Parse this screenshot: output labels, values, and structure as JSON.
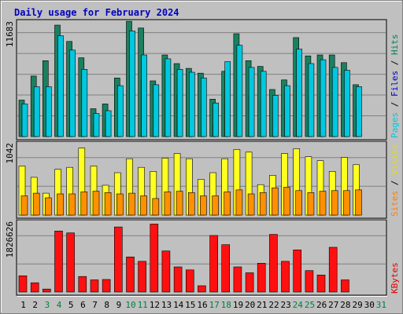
{
  "chart_data": {
    "type": "bar",
    "title": "Daily usage for February 2024",
    "days": [
      "1",
      "2",
      "3",
      "4",
      "5",
      "6",
      "7",
      "8",
      "9",
      "10",
      "11",
      "12",
      "13",
      "14",
      "15",
      "16",
      "17",
      "18",
      "19",
      "20",
      "21",
      "22",
      "23",
      "24",
      "25",
      "26",
      "27",
      "28",
      "29",
      "30",
      "31"
    ],
    "weekend_days": [
      "3",
      "4",
      "10",
      "11",
      "17",
      "18",
      "24",
      "25",
      "31"
    ],
    "panels": [
      {
        "name": "hits-files-pages",
        "max_label": "11683",
        "ymax": 11683,
        "right_label": [
          {
            "text": "Pages",
            "color": "#00c8e0"
          },
          {
            "text": " / ",
            "color": "#000000"
          },
          {
            "text": "Files",
            "color": "#0000c0"
          },
          {
            "text": " / ",
            "color": "#000000"
          },
          {
            "text": "Hits",
            "color": "#008060"
          }
        ],
        "series": [
          {
            "name": "Hits",
            "color": "#1a8060",
            "values": [
              3800,
              6300,
              7900,
              11600,
              9900,
              8200,
              2900,
              3400,
              6100,
              12000,
              11300,
              5800,
              8500,
              7600,
              7100,
              6600,
              3900,
              6800,
              10700,
              7900,
              7300,
              4900,
              5900,
              10300,
              8400,
              8500,
              8500,
              7700,
              5400,
              null,
              null
            ]
          },
          {
            "name": "Files",
            "color": "#0000a0",
            "values": [
              1800,
              3400,
              3700,
              5900,
              6500,
              4700,
              1400,
              2000,
              3400,
              6400,
              5900,
              3400,
              4800,
              4400,
              3800,
              3700,
              1300,
              3500,
              5700,
              4300,
              3700,
              2600,
              3000,
              5400,
              4300,
              4600,
              4600,
              3200,
              2800,
              null,
              null
            ]
          },
          {
            "name": "Pages",
            "color": "#00c8e0",
            "values": [
              3400,
              5200,
              5200,
              10500,
              9000,
              7000,
              2400,
              2700,
              5300,
              11000,
              8500,
              5400,
              8100,
              7000,
              6700,
              6100,
              3500,
              7800,
              9500,
              7200,
              6800,
              4300,
              5300,
              9100,
              7600,
              8000,
              7200,
              6900,
              5200,
              null,
              null
            ]
          }
        ]
      },
      {
        "name": "visits-sites",
        "max_label": "1042",
        "ymax": 1042,
        "right_label": [
          {
            "text": "Sites",
            "color": "#ff8000"
          },
          {
            "text": " / ",
            "color": "#000000"
          },
          {
            "text": "Visits",
            "color": "#e0e000"
          }
        ],
        "series": [
          {
            "name": "Visits",
            "color": "#ffff20",
            "values": [
              740,
              570,
              330,
              690,
              720,
              1010,
              740,
              450,
              640,
              850,
              720,
              660,
              860,
              930,
              850,
              540,
              640,
              850,
              990,
              950,
              460,
              600,
              930,
              1000,
              880,
              820,
              660,
              870,
              760,
              null,
              null
            ]
          },
          {
            "name": "Sites",
            "color": "#ff9000",
            "values": [
              290,
              330,
              260,
              320,
              320,
              350,
              360,
              340,
              320,
              330,
              290,
              250,
              350,
              360,
              340,
              290,
              290,
              350,
              380,
              320,
              340,
              410,
              420,
              370,
              340,
              360,
              370,
              370,
              380,
              null,
              null
            ]
          }
        ]
      },
      {
        "name": "kbytes",
        "max_label": "1826626",
        "ymax": 1826626,
        "right_label": [
          {
            "text": "KBytes",
            "color": "#e00000"
          }
        ],
        "series": [
          {
            "name": "KBytes",
            "color": "#ff1010",
            "values": [
              440000,
              250000,
              80000,
              1650000,
              1600000,
              420000,
              330000,
              340000,
              1760000,
              950000,
              830000,
              1840000,
              1110000,
              680000,
              600000,
              170000,
              1530000,
              1280000,
              680000,
              520000,
              780000,
              1560000,
              830000,
              1140000,
              580000,
              460000,
              1210000,
              330000,
              null,
              null,
              null
            ]
          }
        ]
      }
    ]
  }
}
